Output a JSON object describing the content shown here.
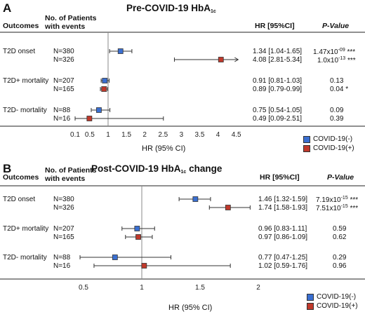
{
  "panels": [
    {
      "letter": "A",
      "title_prefix": "Pre-COVID-19 HbA",
      "title_sub": "1c",
      "title_suffix": "",
      "headers": {
        "outcomes": "Outcomes",
        "patients_line1": "No. of Patients",
        "patients_line2": "with events",
        "hr": "HR [95%CI]",
        "pvalue": "P-Value"
      },
      "rows": [
        {
          "outcome": "T2D onset",
          "n": "N=380",
          "hr_text": "1.34 [1.04-1.65]",
          "p_base": "1.47x10",
          "p_exp": "-09",
          "p_stars": "***"
        },
        {
          "outcome": "",
          "n": "N=326",
          "hr_text": "4.08 [2.81-5.34]",
          "p_base": "1.0x10",
          "p_exp": "-13",
          "p_stars": "***"
        },
        {
          "outcome": "T2D+ mortality",
          "n": "N=207",
          "hr_text": "0.91 [0.81-1.03]",
          "p_base": "0.13",
          "p_exp": "",
          "p_stars": ""
        },
        {
          "outcome": "",
          "n": "N=165",
          "hr_text": "0.89 [0.79-0.99]",
          "p_base": "0.04",
          "p_exp": "",
          "p_stars": "*"
        },
        {
          "outcome": "T2D- mortality",
          "n": "N=88",
          "hr_text": "0.75 [0.54-1.05]",
          "p_base": "0.09",
          "p_exp": "",
          "p_stars": ""
        },
        {
          "outcome": "",
          "n": "N=16",
          "hr_text": "0.49 [0.09-2.51]",
          "p_base": "0.39",
          "p_exp": "",
          "p_stars": ""
        }
      ],
      "x_label": "HR (95% CI)",
      "legend": [
        {
          "label": "COVID-19(-)",
          "color": "#3a6fd1"
        },
        {
          "label": "COVID-19(+)",
          "color": "#c0392b"
        }
      ]
    },
    {
      "letter": "B",
      "title_prefix": "Post-COVID-19 HbA",
      "title_sub": "1c",
      "title_suffix": " change",
      "headers": {
        "outcomes": "Outcomes",
        "patients_line1": "No. of Patients",
        "patients_line2": "with events",
        "hr": "HR [95%CI]",
        "pvalue": "P-Value"
      },
      "rows": [
        {
          "outcome": "T2D onset",
          "n": "N=380",
          "hr_text": "1.46 [1.32-1.59]",
          "p_base": "7.19x10",
          "p_exp": "-15",
          "p_stars": "***"
        },
        {
          "outcome": "",
          "n": "N=326",
          "hr_text": "1.74 [1.58-1.93]",
          "p_base": "7.51x10",
          "p_exp": "-15",
          "p_stars": "***"
        },
        {
          "outcome": "T2D+ mortality",
          "n": "N=207",
          "hr_text": "0.96 [0.83-1.11]",
          "p_base": "0.59",
          "p_exp": "",
          "p_stars": ""
        },
        {
          "outcome": "",
          "n": "N=165",
          "hr_text": "0.97 [0.86-1.09]",
          "p_base": "0.62",
          "p_exp": "",
          "p_stars": ""
        },
        {
          "outcome": "T2D- mortality",
          "n": "N=88",
          "hr_text": "0.77 [0.47-1.25]",
          "p_base": "0.29",
          "p_exp": "",
          "p_stars": ""
        },
        {
          "outcome": "",
          "n": "N=16",
          "hr_text": "1.02 [0.59-1.76]",
          "p_base": "0.96",
          "p_exp": "",
          "p_stars": ""
        }
      ],
      "x_label": "HR (95% CI)",
      "legend": [
        {
          "label": "COVID-19(-)",
          "color": "#3a6fd1"
        },
        {
          "label": "COVID-19(+)",
          "color": "#c0392b"
        }
      ]
    }
  ],
  "chart_data": [
    {
      "type": "forest",
      "title": "Pre-COVID-19 HbA1c",
      "xlabel": "HR (95% CI)",
      "x_ticks": [
        0.1,
        0.5,
        1,
        1.5,
        2,
        2.5,
        3,
        3.5,
        4,
        4.5
      ],
      "reference_line": 1,
      "series": [
        {
          "name": "COVID-19(-)",
          "color": "#3a6fd1",
          "points": [
            {
              "outcome": "T2D onset",
              "hr": 1.34,
              "lo": 1.04,
              "hi": 1.65
            },
            {
              "outcome": "T2D+ mortality",
              "hr": 0.91,
              "lo": 0.81,
              "hi": 1.03
            },
            {
              "outcome": "T2D- mortality",
              "hr": 0.75,
              "lo": 0.54,
              "hi": 1.05
            }
          ]
        },
        {
          "name": "COVID-19(+)",
          "color": "#c0392b",
          "points": [
            {
              "outcome": "T2D onset",
              "hr": 4.08,
              "lo": 2.81,
              "hi": 5.34
            },
            {
              "outcome": "T2D+ mortality",
              "hr": 0.89,
              "lo": 0.79,
              "hi": 0.99
            },
            {
              "outcome": "T2D- mortality",
              "hr": 0.49,
              "lo": 0.09,
              "hi": 2.51
            }
          ]
        }
      ]
    },
    {
      "type": "forest",
      "title": "Post-COVID-19 HbA1c change",
      "xlabel": "HR (95% CI)",
      "x_ticks": [
        0.5,
        1,
        1.5,
        2
      ],
      "reference_line": 1,
      "series": [
        {
          "name": "COVID-19(-)",
          "color": "#3a6fd1",
          "points": [
            {
              "outcome": "T2D onset",
              "hr": 1.46,
              "lo": 1.32,
              "hi": 1.59
            },
            {
              "outcome": "T2D+ mortality",
              "hr": 0.96,
              "lo": 0.83,
              "hi": 1.11
            },
            {
              "outcome": "T2D- mortality",
              "hr": 0.77,
              "lo": 0.47,
              "hi": 1.25
            }
          ]
        },
        {
          "name": "COVID-19(+)",
          "color": "#c0392b",
          "points": [
            {
              "outcome": "T2D onset",
              "hr": 1.74,
              "lo": 1.58,
              "hi": 1.93
            },
            {
              "outcome": "T2D+ mortality",
              "hr": 0.97,
              "lo": 0.86,
              "hi": 1.09
            },
            {
              "outcome": "T2D- mortality",
              "hr": 1.02,
              "lo": 0.59,
              "hi": 1.76
            }
          ]
        }
      ]
    }
  ]
}
